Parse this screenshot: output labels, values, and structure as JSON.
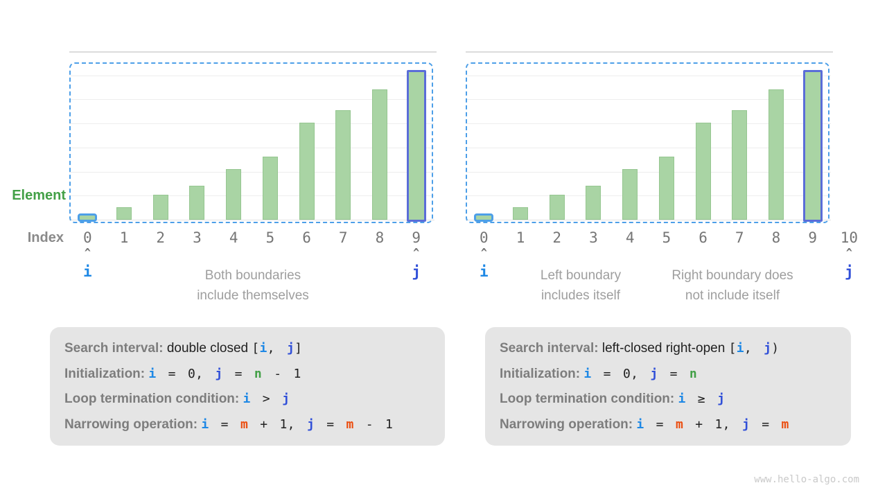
{
  "colors": {
    "bar_green": "#a9d4a4",
    "bar_green_border": "#95c690",
    "highlight_blue": "#4d9fe8",
    "highlight_indigo": "#5a6dd8",
    "dashed_box": "#4d9fe8",
    "i": "#1e88e5",
    "j": "#3150d8",
    "m": "#eb4c0e",
    "n": "#43a047",
    "element_label": "#43a047",
    "index_label": "#8a8a8a",
    "index_digit": "#757575",
    "annotation": "#9e9e9e",
    "box_bg": "#e5e5e5",
    "box_label": "#7d7d7d",
    "box_text": "#212121",
    "grid": "#ededed",
    "axis_line": "#dcdcdc",
    "baseline": "#e2e2e2",
    "watermark": "#c9c9c9"
  },
  "side_labels": {
    "element": "Element",
    "index": "Index"
  },
  "watermark": "www.hello-algo.com",
  "chart_data": {
    "type": "bar",
    "values": [
      1,
      3,
      6,
      8,
      12,
      15,
      23,
      26,
      31,
      35
    ],
    "ylim": [
      0,
      40
    ],
    "grid": true,
    "legend_position": "none"
  },
  "charts": [
    {
      "name": "double-closed",
      "indices": [
        "0",
        "1",
        "2",
        "3",
        "4",
        "5",
        "6",
        "7",
        "8",
        "9"
      ],
      "highlights": [
        {
          "slot": 0,
          "style": "blue"
        },
        {
          "slot": 9,
          "style": "indigo"
        }
      ],
      "markers": [
        {
          "slot": 0,
          "label": "i"
        },
        {
          "slot": 9,
          "label": "j"
        }
      ]
    },
    {
      "name": "left-closed-right-open",
      "indices": [
        "0",
        "1",
        "2",
        "3",
        "4",
        "5",
        "6",
        "7",
        "8",
        "9",
        "10"
      ],
      "highlights": [
        {
          "slot": 0,
          "style": "blue"
        },
        {
          "slot": 9,
          "style": "indigo"
        }
      ],
      "markers": [
        {
          "slot": 0,
          "label": "i"
        },
        {
          "slot": 10,
          "label": "j"
        }
      ]
    }
  ],
  "annotations": [
    {
      "name": "both-boundaries",
      "lines": [
        "Both boundaries",
        "include themselves"
      ]
    },
    {
      "name": "left-boundary",
      "lines": [
        "Left boundary",
        "includes itself"
      ]
    },
    {
      "name": "right-boundary",
      "lines": [
        "Right boundary does",
        "not include itself"
      ]
    }
  ],
  "boxes": [
    {
      "name": "double-closed-box",
      "lines": [
        [
          {
            "t": "Search interval: ",
            "s": "lbl"
          },
          {
            "t": "double closed ",
            "s": "plain"
          },
          {
            "t": "[",
            "s": "code"
          },
          {
            "t": "i",
            "s": "i"
          },
          {
            "t": ", ",
            "s": "code"
          },
          {
            "t": "j",
            "s": "j"
          },
          {
            "t": "]",
            "s": "code"
          }
        ],
        [
          {
            "t": "Initialization: ",
            "s": "lbl"
          },
          {
            "t": "i",
            "s": "i"
          },
          {
            "t": " = 0, ",
            "s": "code"
          },
          {
            "t": "j",
            "s": "j"
          },
          {
            "t": " = ",
            "s": "code"
          },
          {
            "t": "n",
            "s": "n"
          },
          {
            "t": " - 1",
            "s": "code"
          }
        ],
        [
          {
            "t": "Loop termination condition: ",
            "s": "lbl"
          },
          {
            "t": "i",
            "s": "i"
          },
          {
            "t": " > ",
            "s": "code"
          },
          {
            "t": "j",
            "s": "j"
          }
        ],
        [
          {
            "t": "Narrowing operation: ",
            "s": "lbl"
          },
          {
            "t": "i",
            "s": "i"
          },
          {
            "t": " = ",
            "s": "code"
          },
          {
            "t": "m",
            "s": "m"
          },
          {
            "t": " + 1, ",
            "s": "code"
          },
          {
            "t": "j",
            "s": "j"
          },
          {
            "t": " = ",
            "s": "code"
          },
          {
            "t": "m",
            "s": "m"
          },
          {
            "t": " - 1",
            "s": "code"
          }
        ]
      ]
    },
    {
      "name": "left-closed-right-open-box",
      "lines": [
        [
          {
            "t": "Search interval: ",
            "s": "lbl"
          },
          {
            "t": "left-closed right-open ",
            "s": "plain"
          },
          {
            "t": "[",
            "s": "code"
          },
          {
            "t": "i",
            "s": "i"
          },
          {
            "t": ", ",
            "s": "code"
          },
          {
            "t": "j",
            "s": "j"
          },
          {
            "t": ")",
            "s": "code"
          }
        ],
        [
          {
            "t": "Initialization: ",
            "s": "lbl"
          },
          {
            "t": "i",
            "s": "i"
          },
          {
            "t": " = 0, ",
            "s": "code"
          },
          {
            "t": "j",
            "s": "j"
          },
          {
            "t": " = ",
            "s": "code"
          },
          {
            "t": "n",
            "s": "n"
          }
        ],
        [
          {
            "t": "Loop termination condition: ",
            "s": "lbl"
          },
          {
            "t": "i",
            "s": "i"
          },
          {
            "t": " ≥ ",
            "s": "code"
          },
          {
            "t": "j",
            "s": "j"
          }
        ],
        [
          {
            "t": "Narrowing operation: ",
            "s": "lbl"
          },
          {
            "t": "i",
            "s": "i"
          },
          {
            "t": " = ",
            "s": "code"
          },
          {
            "t": "m",
            "s": "m"
          },
          {
            "t": " + 1, ",
            "s": "code"
          },
          {
            "t": "j",
            "s": "j"
          },
          {
            "t": " = ",
            "s": "code"
          },
          {
            "t": "m",
            "s": "m"
          }
        ]
      ]
    }
  ]
}
